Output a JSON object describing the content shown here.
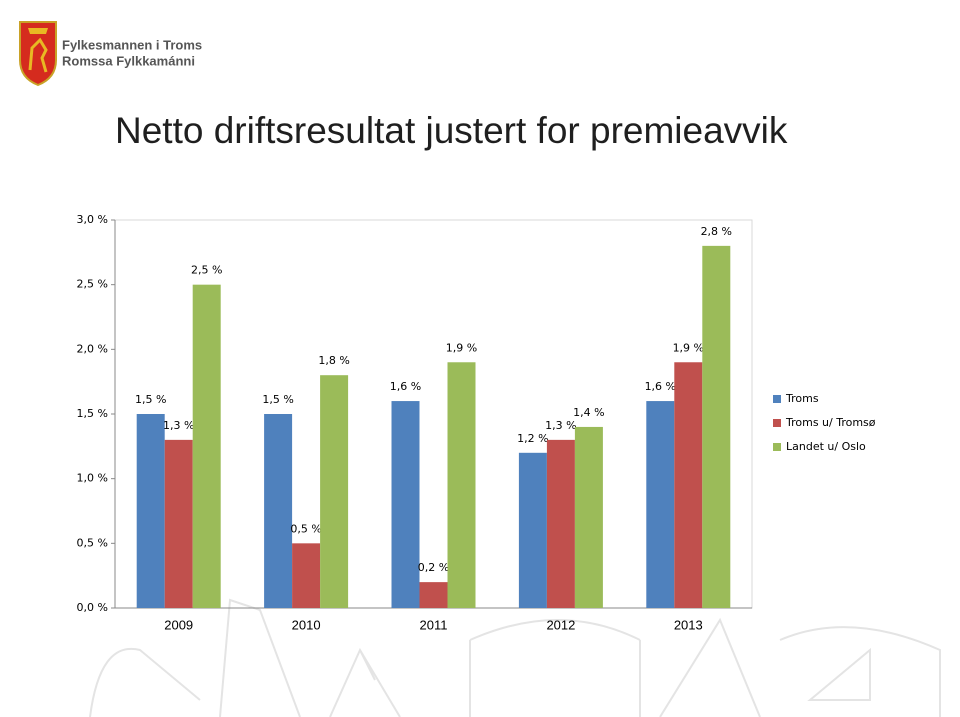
{
  "logo": {
    "line1": "Fylkesmannen i Troms",
    "line2": "Romssa Fylkkamánni"
  },
  "chart_data": {
    "type": "bar",
    "title": "Netto driftsresultat justert for premieavvik",
    "categories": [
      "2009",
      "2010",
      "2011",
      "2012",
      "2013"
    ],
    "series": [
      {
        "name": "Troms",
        "color": "#4f81bd",
        "values": [
          1.5,
          1.5,
          1.6,
          1.2,
          1.6
        ],
        "value_labels": [
          "1,5 %",
          "1,5 %",
          "1,6 %",
          "1,2 %",
          "1,6 %"
        ]
      },
      {
        "name": "Troms u/ Tromsø",
        "color": "#c0504d",
        "values": [
          1.3,
          0.5,
          0.2,
          1.3,
          1.9
        ],
        "value_labels": [
          "1,3 %",
          "0,5 %",
          "0,2 %",
          "1,3 %",
          "1,9 %"
        ]
      },
      {
        "name": "Landet u/ Oslo",
        "color": "#9bbb59",
        "values": [
          2.5,
          1.8,
          1.9,
          1.4,
          2.8
        ],
        "value_labels": [
          "2,5 %",
          "1,8 %",
          "1,9 %",
          "1,4 %",
          "2,8 %"
        ]
      }
    ],
    "ylim": [
      0,
      3
    ],
    "yticks": [
      {
        "value": 0,
        "label": "0,0 %"
      },
      {
        "value": 0.5,
        "label": "0,5 %"
      },
      {
        "value": 1,
        "label": "1,0 %"
      },
      {
        "value": 1.5,
        "label": "1,5 %"
      },
      {
        "value": 2,
        "label": "2,0 %"
      },
      {
        "value": 2.5,
        "label": "2,5 %"
      },
      {
        "value": 3,
        "label": "3,0 %"
      }
    ],
    "grid": false,
    "legend": "right"
  }
}
